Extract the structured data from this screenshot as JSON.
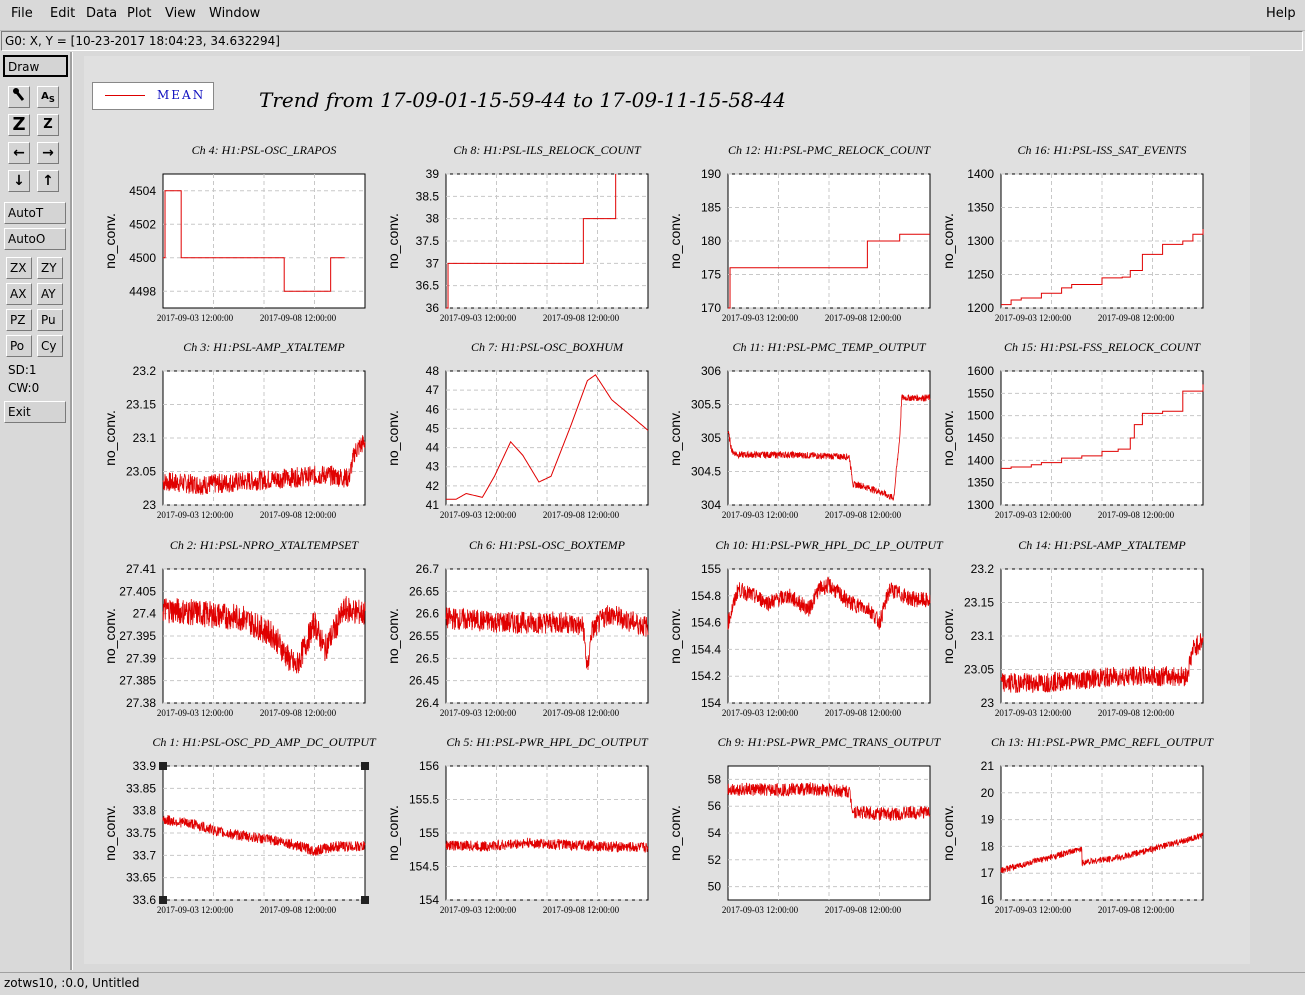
{
  "menubar": {
    "items": [
      "File",
      "Edit",
      "Data",
      "Plot",
      "View",
      "Window"
    ],
    "help": "Help"
  },
  "coord_readout": "G0: X, Y = [10-23-2017 18:04:23, 34.632294]",
  "toolbar": {
    "draw": "Draw",
    "autot": "AutoT",
    "autoo": "AutoO",
    "grid_buttons": [
      "ZX",
      "ZY",
      "AX",
      "AY",
      "PZ",
      "Pu",
      "Po",
      "Cy"
    ],
    "sd": "SD:1",
    "cw": "CW:0",
    "exit": "Exit"
  },
  "legend": {
    "label": "MEAN"
  },
  "trend_title": "Trend from 17-09-01-15-59-44 to 17-09-11-15-58-44",
  "status_bar": "zotws10, :0.0, Untitled",
  "chart_data": [
    {
      "type": "line",
      "title": "Ch 4: H1:PSL-OSC_LRAPOS",
      "ylabel": "no_conv.",
      "yticks": [
        "4504",
        "4502",
        "4500",
        "4498"
      ],
      "xticks": [
        "2017-09-03 12:00:00",
        "2017-09-08 12:00:00"
      ],
      "grid": true,
      "ylim": [
        4497,
        4505
      ],
      "style": "step",
      "x": [
        0,
        0.01,
        0.01,
        0.09,
        0.09,
        0.6,
        0.6,
        0.83,
        0.83,
        0.9
      ],
      "y": [
        4500,
        4500,
        4504,
        4504,
        4500,
        4500,
        4498,
        4498,
        4500,
        4500
      ]
    },
    {
      "type": "line",
      "title": "Ch 8: H1:PSL-ILS_RELOCK_COUNT",
      "ylabel": "no_conv.",
      "yticks": [
        "39",
        "38.5",
        "38",
        "37.5",
        "37",
        "36.5",
        "36"
      ],
      "xticks": [
        "2017-09-03 12:00:00",
        "2017-09-08 12:00:00"
      ],
      "grid": true,
      "ylim": [
        36,
        39
      ],
      "style": "step",
      "x": [
        0,
        0.01,
        0.01,
        0.09,
        0.09,
        0.68,
        0.68,
        0.84,
        0.84
      ],
      "y": [
        36,
        36,
        37,
        37,
        37,
        37,
        38,
        38,
        39
      ]
    },
    {
      "type": "line",
      "title": "Ch 12: H1:PSL-PMC_RELOCK_COUNT",
      "ylabel": "no_conv.",
      "yticks": [
        "190",
        "185",
        "180",
        "175",
        "170"
      ],
      "xticks": [
        "2017-09-03 12:00:00",
        "2017-09-08 12:00:00"
      ],
      "grid": true,
      "ylim": [
        170,
        190
      ],
      "style": "step",
      "x": [
        0,
        0.01,
        0.01,
        0.69,
        0.69,
        0.85,
        0.85,
        1.0
      ],
      "y": [
        170,
        170,
        176,
        176,
        180,
        180,
        181,
        181
      ]
    },
    {
      "type": "line",
      "title": "Ch 16: H1:PSL-ISS_SAT_EVENTS",
      "ylabel": "no_conv.",
      "yticks": [
        "1400",
        "1350",
        "1300",
        "1250",
        "1200"
      ],
      "xticks": [
        "2017-09-03 12:00:00",
        "2017-09-08 12:00:00"
      ],
      "grid": true,
      "ylim": [
        1200,
        1400
      ],
      "style": "step",
      "x": [
        0,
        0.05,
        0.1,
        0.2,
        0.3,
        0.35,
        0.5,
        0.6,
        0.64,
        0.7,
        0.8,
        0.9,
        0.95,
        1.0
      ],
      "y": [
        1205,
        1212,
        1215,
        1222,
        1230,
        1235,
        1245,
        1246,
        1256,
        1280,
        1295,
        1300,
        1310,
        1318
      ]
    },
    {
      "type": "line",
      "title": "Ch 3: H1:PSL-AMP_XTALTEMP",
      "ylabel": "no_conv.",
      "yticks": [
        "23.2",
        "23.15",
        "23.1",
        "23.05",
        "23"
      ],
      "xticks": [
        "2017-09-03 12:00:00",
        "2017-09-08 12:00:00"
      ],
      "grid": true,
      "ylim": [
        23,
        23.2
      ],
      "style": "noisy",
      "noise": 0.015,
      "x": [
        0,
        0.2,
        0.4,
        0.6,
        0.8,
        0.92,
        0.95,
        1.0
      ],
      "y": [
        23.035,
        23.03,
        23.035,
        23.04,
        23.045,
        23.04,
        23.08,
        23.095
      ]
    },
    {
      "type": "line",
      "title": "Ch 7: H1:PSL-OSC_BOXHUM",
      "ylabel": "no_conv.",
      "yticks": [
        "48",
        "47",
        "46",
        "45",
        "44",
        "43",
        "42",
        "41"
      ],
      "xticks": [
        "2017-09-03 12:00:00",
        "2017-09-08 12:00:00"
      ],
      "grid": true,
      "ylim": [
        41,
        48
      ],
      "style": "smooth",
      "x": [
        0,
        0.05,
        0.1,
        0.18,
        0.24,
        0.32,
        0.38,
        0.46,
        0.52,
        0.62,
        0.7,
        0.74,
        0.82,
        0.9,
        1.0
      ],
      "y": [
        41.3,
        41.3,
        41.6,
        41.4,
        42.5,
        44.3,
        43.6,
        42.2,
        42.5,
        45.2,
        47.5,
        47.8,
        46.5,
        45.8,
        44.9
      ]
    },
    {
      "type": "line",
      "title": "Ch 11: H1:PSL-PMC_TEMP_OUTPUT",
      "ylabel": "no_conv.",
      "yticks": [
        "306",
        "305.5",
        "305",
        "304.5",
        "304"
      ],
      "xticks": [
        "2017-09-03 12:00:00",
        "2017-09-08 12:00:00"
      ],
      "grid": true,
      "ylim": [
        304,
        306
      ],
      "style": "noisy",
      "noise": 0.05,
      "x": [
        0,
        0.02,
        0.05,
        0.3,
        0.6,
        0.62,
        0.65,
        0.75,
        0.82,
        0.85,
        0.86,
        1.0
      ],
      "y": [
        305.1,
        304.8,
        304.75,
        304.75,
        304.72,
        304.3,
        304.3,
        304.2,
        304.1,
        305,
        305.6,
        305.6
      ]
    },
    {
      "type": "line",
      "title": "Ch 15: H1:PSL-FSS_RELOCK_COUNT",
      "ylabel": "no_conv.",
      "yticks": [
        "1600",
        "1550",
        "1500",
        "1450",
        "1400",
        "1350",
        "1300"
      ],
      "xticks": [
        "2017-09-03 12:00:00",
        "2017-09-08 12:00:00"
      ],
      "grid": true,
      "ylim": [
        1300,
        1600
      ],
      "style": "step",
      "x": [
        0,
        0.05,
        0.15,
        0.2,
        0.3,
        0.4,
        0.5,
        0.58,
        0.64,
        0.66,
        0.7,
        0.78,
        0.8,
        0.9,
        1.0
      ],
      "y": [
        1382,
        1385,
        1390,
        1395,
        1405,
        1410,
        1420,
        1425,
        1450,
        1480,
        1505,
        1505,
        1510,
        1555,
        1570
      ]
    },
    {
      "type": "line",
      "title": "Ch 2: H1:PSL-NPRO_XTALTEMPSET",
      "ylabel": "no_conv.",
      "yticks": [
        "27.41",
        "27.405",
        "27.4",
        "27.395",
        "27.39",
        "27.385",
        "27.38"
      ],
      "xticks": [
        "2017-09-03 12:00:00",
        "2017-09-08 12:00:00"
      ],
      "grid": true,
      "ylim": [
        27.38,
        27.41
      ],
      "style": "noisy",
      "noise": 0.003,
      "x": [
        0,
        0.2,
        0.4,
        0.55,
        0.62,
        0.66,
        0.75,
        0.8,
        0.9,
        1.0
      ],
      "y": [
        27.401,
        27.4,
        27.399,
        27.395,
        27.39,
        27.388,
        27.398,
        27.392,
        27.401,
        27.4
      ]
    },
    {
      "type": "line",
      "title": "Ch 6: H1:PSL-OSC_BOXTEMP",
      "ylabel": "no_conv.",
      "yticks": [
        "26.7",
        "26.65",
        "26.6",
        "26.55",
        "26.5",
        "26.45",
        "26.4"
      ],
      "xticks": [
        "2017-09-03 12:00:00",
        "2017-09-08 12:00:00"
      ],
      "grid": true,
      "ylim": [
        26.4,
        26.7
      ],
      "style": "noisy",
      "noise": 0.025,
      "x": [
        0,
        0.3,
        0.6,
        0.68,
        0.7,
        0.72,
        0.8,
        1.0
      ],
      "y": [
        26.59,
        26.58,
        26.58,
        26.57,
        26.47,
        26.56,
        26.6,
        26.57
      ]
    },
    {
      "type": "line",
      "title": "Ch 10: H1:PSL-PWR_HPL_DC_LP_OUTPUT",
      "ylabel": "no_conv.",
      "yticks": [
        "155",
        "154.8",
        "154.6",
        "154.4",
        "154.2",
        "154"
      ],
      "xticks": [
        "2017-09-03 12:00:00",
        "2017-09-08 12:00:00"
      ],
      "grid": true,
      "ylim": [
        154,
        155
      ],
      "style": "noisy",
      "noise": 0.06,
      "x": [
        0,
        0.05,
        0.2,
        0.3,
        0.4,
        0.45,
        0.5,
        0.6,
        0.7,
        0.75,
        0.8,
        0.9,
        1.0
      ],
      "y": [
        154.6,
        154.85,
        154.75,
        154.8,
        154.7,
        154.85,
        154.88,
        154.75,
        154.7,
        154.6,
        154.85,
        154.78,
        154.76
      ]
    },
    {
      "type": "line",
      "title": "Ch 14: H1:PSL-AMP_XTALTEMP",
      "ylabel": "no_conv.",
      "yticks": [
        "23.2",
        "23.15",
        "23.1",
        "23.05",
        "23"
      ],
      "xticks": [
        "2017-09-03 12:00:00",
        "2017-09-08 12:00:00"
      ],
      "grid": true,
      "ylim": [
        23,
        23.2
      ],
      "style": "noisy",
      "noise": 0.015,
      "x": [
        0,
        0.2,
        0.4,
        0.6,
        0.8,
        0.92,
        0.95,
        1.0
      ],
      "y": [
        23.03,
        23.03,
        23.035,
        23.04,
        23.04,
        23.04,
        23.08,
        23.095
      ]
    },
    {
      "type": "line",
      "title": "Ch 1: H1:PSL-OSC_PD_AMP_DC_OUTPUT",
      "ylabel": "no_conv.",
      "yticks": [
        "33.9",
        "33.85",
        "33.8",
        "33.75",
        "33.7",
        "33.65",
        "33.6"
      ],
      "xticks": [
        "2017-09-03 12:00:00",
        "2017-09-08 12:00:00"
      ],
      "grid": true,
      "ylim": [
        33.6,
        33.9
      ],
      "style": "noisy",
      "noise": 0.012,
      "x": [
        0,
        0.15,
        0.3,
        0.45,
        0.6,
        0.75,
        0.85,
        1.0
      ],
      "y": [
        33.78,
        33.77,
        33.75,
        33.74,
        33.73,
        33.71,
        33.72,
        33.72
      ]
    },
    {
      "type": "line",
      "title": "Ch 5: H1:PSL-PWR_HPL_DC_OUTPUT",
      "ylabel": "no_conv.",
      "yticks": [
        "156",
        "155.5",
        "155",
        "154.5",
        "154"
      ],
      "xticks": [
        "2017-09-03 12:00:00",
        "2017-09-08 12:00:00"
      ],
      "grid": true,
      "ylim": [
        154,
        156
      ],
      "style": "noisy",
      "noise": 0.08,
      "x": [
        0,
        0.2,
        0.4,
        0.6,
        0.8,
        1.0
      ],
      "y": [
        154.82,
        154.8,
        154.85,
        154.82,
        154.8,
        154.78
      ]
    },
    {
      "type": "line",
      "title": "Ch 9: H1:PSL-PWR_PMC_TRANS_OUTPUT",
      "ylabel": "no_conv.",
      "yticks": [
        "58",
        "56",
        "54",
        "52",
        "50"
      ],
      "xticks": [
        "2017-09-03 12:00:00",
        "2017-09-08 12:00:00"
      ],
      "grid": true,
      "ylim": [
        49,
        59
      ],
      "style": "noisy",
      "noise": 0.5,
      "x": [
        0,
        0.2,
        0.4,
        0.6,
        0.62,
        0.7,
        0.8,
        0.9,
        1.0
      ],
      "y": [
        57.3,
        57.2,
        57.3,
        57.1,
        55.6,
        55.5,
        55.4,
        55.5,
        55.6
      ]
    },
    {
      "type": "line",
      "title": "Ch 13: H1:PSL-PWR_PMC_REFL_OUTPUT",
      "ylabel": "no_conv.",
      "yticks": [
        "21",
        "20",
        "19",
        "18",
        "17",
        "16"
      ],
      "xticks": [
        "2017-09-03 12:00:00",
        "2017-09-08 12:00:00"
      ],
      "grid": true,
      "ylim": [
        16,
        21
      ],
      "style": "noisy",
      "noise": 0.12,
      "x": [
        0,
        0.2,
        0.4,
        0.4,
        0.6,
        0.7,
        0.8,
        0.9,
        1.0
      ],
      "y": [
        17.1,
        17.5,
        17.9,
        17.4,
        17.6,
        17.8,
        18,
        18.2,
        18.4
      ]
    }
  ]
}
